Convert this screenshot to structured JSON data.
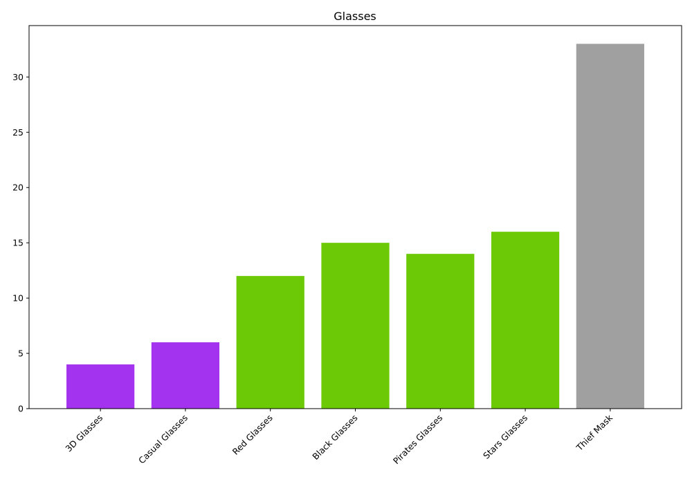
{
  "chart_data": {
    "type": "bar",
    "title": "Glasses",
    "xlabel": "",
    "ylabel": "",
    "categories": [
      "3D Glasses",
      "Casual Glasses",
      "Red Glasses",
      "Black Glasses",
      "Pirates Glasses",
      "Stars Glasses",
      "Thief Mask"
    ],
    "values": [
      4,
      6,
      12,
      15,
      14,
      16,
      33
    ],
    "colors": [
      "#a333ee",
      "#a333ee",
      "#6bc906",
      "#6bc906",
      "#6bc906",
      "#6bc906",
      "#a0a0a0"
    ],
    "ylim": [
      0,
      34.65
    ],
    "yticks": [
      0,
      5,
      10,
      15,
      20,
      25,
      30
    ],
    "xtick_rotation_deg": 45,
    "grid": false,
    "legend": "none"
  }
}
